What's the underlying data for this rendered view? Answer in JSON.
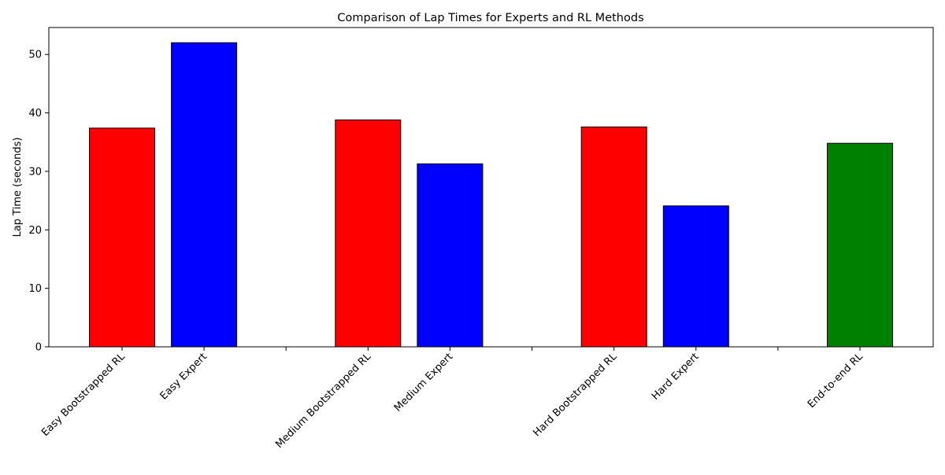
{
  "chart_data": {
    "type": "bar",
    "title": "Comparison of Lap Times for Experts and RL Methods",
    "xlabel": "",
    "ylabel": "Lap Time (seconds)",
    "ylim": [
      0,
      54.6
    ],
    "yticks": [
      0,
      10,
      20,
      30,
      40,
      50
    ],
    "grid": false,
    "categories": [
      "Easy Bootstrapped RL",
      "Easy Expert",
      "",
      "Medium Bootstrapped RL",
      "Medium Expert",
      "",
      "Hard Bootstrapped RL",
      "Hard Expert",
      "",
      "End-to-end RL"
    ],
    "values": [
      37.4,
      52.0,
      0,
      38.8,
      31.3,
      0,
      37.6,
      24.1,
      0,
      34.8
    ],
    "colors": [
      "#ff0000",
      "#0000ff",
      null,
      "#ff0000",
      "#0000ff",
      null,
      "#ff0000",
      "#0000ff",
      null,
      "#008000"
    ]
  }
}
